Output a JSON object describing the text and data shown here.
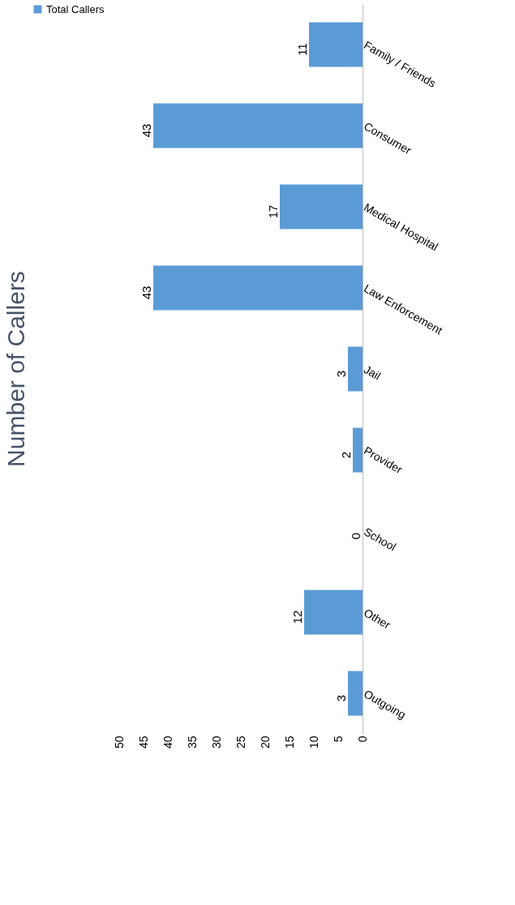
{
  "chart_data": {
    "type": "bar",
    "orientation": "horizontal",
    "title": "Number of Callers",
    "categories": [
      "Family / Friends",
      "Consumer",
      "Medical Hospital",
      "Law Enforcement",
      "Jail",
      "Provider",
      "School",
      "Other",
      "Outgoing"
    ],
    "series": [
      {
        "name": "Total Callers",
        "color": "#5b9bd5",
        "values": [
          11,
          43,
          17,
          43,
          3,
          2,
          0,
          12,
          3
        ]
      }
    ],
    "xlim": [
      50,
      0
    ],
    "xticks": [
      0,
      5,
      10,
      15,
      20,
      25,
      30,
      35,
      40,
      45,
      50
    ],
    "data_labels": true,
    "grid": false,
    "legend": "left"
  }
}
